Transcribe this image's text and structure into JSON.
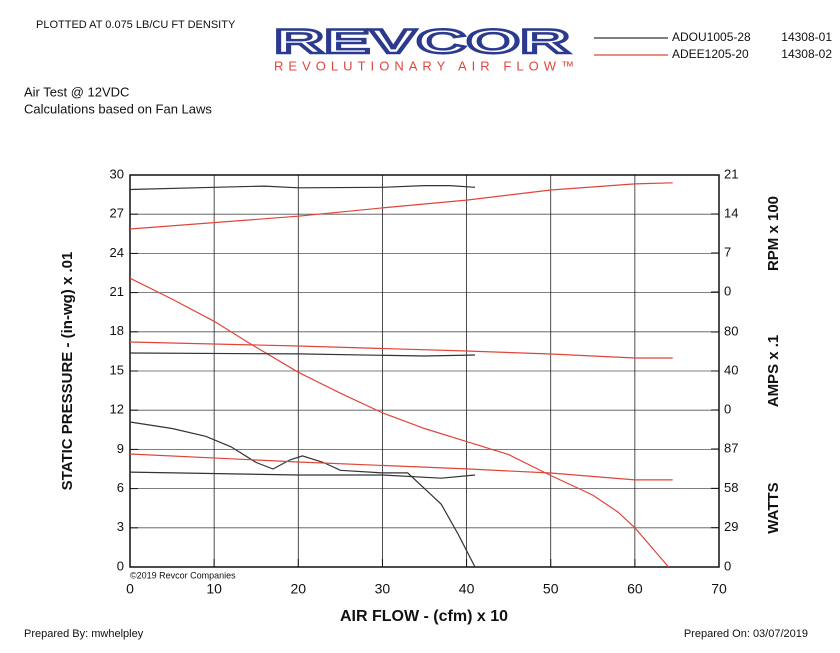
{
  "chart_data": {
    "type": "line",
    "header_note": "PLOTTED AT 0.075 LB/CU FT DENSITY",
    "brand": "REVCOR",
    "tagline": "REVOLUTIONARY AIR FLOW™",
    "test_title": "Air Test @ 12VDC",
    "test_note": "Calculations based on Fan Laws",
    "x_label": "AIR FLOW - (cfm) x 10",
    "y_label": "STATIC PRESSURE - (in-wg) x .01",
    "copyright": "©2019 Revcor Companies",
    "prepared_by": "Prepared By: mwhelpley",
    "prepared_on": "Prepared On: 03/07/2019",
    "grid": true,
    "xlim": [
      0,
      70
    ],
    "xticks": [
      0,
      10,
      20,
      30,
      40,
      50,
      60,
      70
    ],
    "ylim": [
      0,
      30
    ],
    "yticks": [
      0,
      3,
      6,
      9,
      12,
      15,
      18,
      21,
      24,
      27,
      30
    ],
    "right_axes": [
      {
        "id": "rpm",
        "label": "RPM x 100",
        "lim": [
          0,
          21
        ],
        "ticks": [
          0,
          7,
          14,
          21
        ]
      },
      {
        "id": "amps",
        "label": "AMPS x .1",
        "lim": [
          0,
          80
        ],
        "ticks": [
          0,
          40,
          80
        ]
      },
      {
        "id": "watts",
        "label": "WATTS",
        "lim": [
          0,
          87
        ],
        "ticks": [
          0,
          29,
          58,
          87
        ]
      }
    ],
    "legend": [
      {
        "name": "ADOU1005-28",
        "code": "14308-01",
        "color": "#333333"
      },
      {
        "name": "ADEE1205-20",
        "code": "14308-02",
        "color": "#e0453a"
      }
    ],
    "series": [
      {
        "fan": 0,
        "axis": "y",
        "color": "#333333",
        "x": [
          0,
          5,
          9,
          12,
          15,
          17,
          19,
          20.5,
          23,
          25,
          30,
          33,
          35,
          37,
          39,
          41
        ],
        "values": [
          11.1,
          10.6,
          10.0,
          9.2,
          8.0,
          7.5,
          8.2,
          8.5,
          8.0,
          7.4,
          7.2,
          7.2,
          6.0,
          4.8,
          2.5,
          0
        ]
      },
      {
        "fan": 1,
        "axis": "y",
        "color": "#e0453a",
        "x": [
          0,
          5,
          10,
          14,
          20,
          25,
          30,
          35,
          40,
          45,
          50,
          55,
          58,
          60,
          62,
          64
        ],
        "values": [
          22.1,
          20.5,
          18.8,
          17.2,
          14.9,
          13.3,
          11.8,
          10.6,
          9.6,
          8.6,
          7.0,
          5.5,
          4.2,
          3.0,
          1.5,
          0
        ]
      },
      {
        "fan": 0,
        "axis": "rpm",
        "color": "#333333",
        "x": [
          0,
          10,
          16,
          20,
          30,
          35,
          38,
          41
        ],
        "values": [
          18.4,
          18.8,
          19.0,
          18.7,
          18.8,
          19.1,
          19.1,
          18.8
        ]
      },
      {
        "fan": 1,
        "axis": "rpm",
        "color": "#e0453a",
        "x": [
          0,
          20,
          30,
          40,
          50,
          60,
          64.5
        ],
        "values": [
          11.3,
          13.6,
          15.1,
          16.5,
          18.3,
          19.4,
          19.6
        ]
      },
      {
        "fan": 0,
        "axis": "amps",
        "color": "#333333",
        "x": [
          0,
          20,
          35,
          41
        ],
        "values": [
          58.5,
          57.5,
          55.4,
          56.4
        ]
      },
      {
        "fan": 1,
        "axis": "amps",
        "color": "#e0453a",
        "x": [
          0,
          20,
          40,
          50,
          60,
          64.5
        ],
        "values": [
          69.7,
          65.6,
          60.5,
          57.4,
          53.3,
          53.3
        ]
      },
      {
        "fan": 0,
        "axis": "watts",
        "color": "#333333",
        "x": [
          0,
          20,
          30,
          37,
          41
        ],
        "values": [
          70,
          67.8,
          67.8,
          65.5,
          67.8
        ]
      },
      {
        "fan": 1,
        "axis": "watts",
        "color": "#e0453a",
        "x": [
          0,
          20,
          40,
          50,
          60,
          64.5
        ],
        "values": [
          83.3,
          77.4,
          72.3,
          69.3,
          64.2,
          64.2
        ]
      }
    ]
  }
}
